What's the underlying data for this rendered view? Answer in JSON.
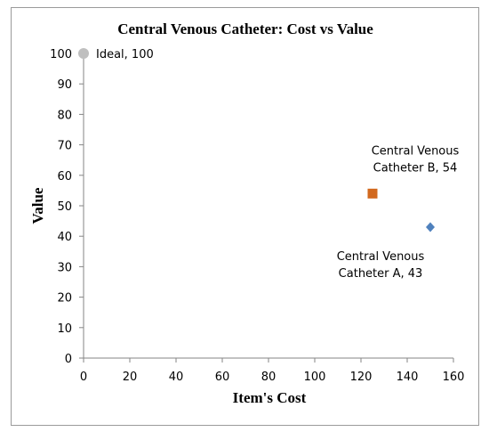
{
  "chart_data": {
    "type": "scatter",
    "title": "Central Venous Catheter: Cost vs Value",
    "xlabel": "Item's Cost",
    "ylabel": "Value",
    "xlim": [
      0,
      160
    ],
    "ylim": [
      0,
      100
    ],
    "xticks": [
      0,
      20,
      40,
      60,
      80,
      100,
      120,
      140,
      160
    ],
    "yticks": [
      0,
      10,
      20,
      30,
      40,
      50,
      60,
      70,
      80,
      90,
      100
    ],
    "grid": false,
    "legend": "none",
    "points": [
      {
        "label": "Ideal, 100",
        "label_lines": [
          "Ideal, 100"
        ],
        "x": 0,
        "y": 100,
        "marker": "circle",
        "color": "#bfbfbf",
        "label_side": "right"
      },
      {
        "label": "Central Venous Catheter B, 54",
        "label_lines": [
          "Central Venous",
          "Catheter B, 54"
        ],
        "x": 125,
        "y": 54,
        "marker": "square",
        "color": "#d2691e",
        "label_side": "above"
      },
      {
        "label": "Central Venous Catheter A, 43",
        "label_lines": [
          "Central Venous",
          "Catheter A, 43"
        ],
        "x": 150,
        "y": 43,
        "marker": "diamond",
        "color": "#4f81bd",
        "label_side": "below-left"
      }
    ]
  }
}
